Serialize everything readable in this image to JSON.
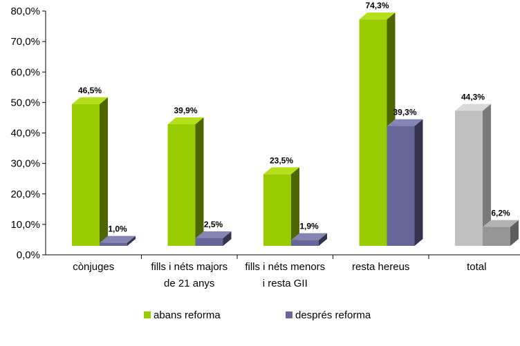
{
  "chart_data": {
    "type": "bar",
    "categories": [
      [
        "cònjuges"
      ],
      [
        "fills i néts majors",
        "de 21 anys"
      ],
      [
        "fills i néts menors",
        "i resta GII"
      ],
      [
        "resta hereus"
      ],
      [
        "total"
      ]
    ],
    "series": [
      {
        "name": "abans reforma",
        "values": [
          46.5,
          39.9,
          23.5,
          74.3,
          44.3
        ],
        "labels": [
          "46,5%",
          "39,9%",
          "23,5%",
          "74,3%",
          "44,3%"
        ]
      },
      {
        "name": "després reforma",
        "values": [
          1.0,
          2.5,
          1.9,
          39.3,
          6.2
        ],
        "labels": [
          "1,0%",
          "2,5%",
          "1,9%",
          "39,3%",
          "6,2%"
        ]
      }
    ],
    "y_ticks": [
      "0,0%",
      "10,0%",
      "20,0%",
      "30,0%",
      "40,0%",
      "50,0%",
      "60,0%",
      "70,0%",
      "80,0%"
    ],
    "ylim": [
      0,
      80
    ],
    "colors": {
      "abans_front": "#99cc00",
      "abans_top": "#b3e01a",
      "abans_side": "#4d6600",
      "despres_front": "#666699",
      "despres_top": "#8585b3",
      "despres_side": "#33334d",
      "total_abans_front": "#c0c0c0",
      "total_abans_top": "#d9d9d9",
      "total_abans_side": "#7a7a7a",
      "total_despres_front": "#969696",
      "total_despres_top": "#b2b2b2",
      "total_despres_side": "#5e5e5e"
    },
    "legend_position": "bottom",
    "grid": false
  }
}
